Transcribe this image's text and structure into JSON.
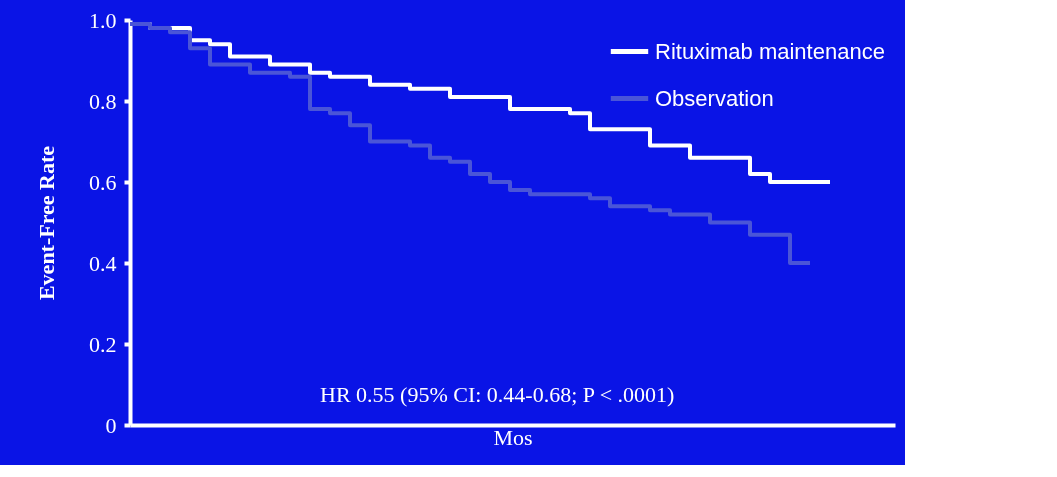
{
  "chart_data": {
    "type": "step",
    "xlabel": "Mos",
    "ylabel": "Event-Free Rate",
    "categories": [
      null,
      null,
      null,
      null,
      null,
      null,
      null,
      null,
      null,
      null,
      null,
      null,
      null,
      null,
      null,
      null,
      null,
      null,
      null,
      null,
      null,
      null,
      null,
      null,
      null,
      null,
      null,
      null,
      null,
      null,
      null,
      null,
      null,
      null,
      null,
      null
    ],
    "series": [
      {
        "name": "Rituximab maintenance",
        "color": "#ffffff",
        "values": [
          0.99,
          0.98,
          0.98,
          0.95,
          0.94,
          0.91,
          0.91,
          0.89,
          0.89,
          0.87,
          0.86,
          0.86,
          0.84,
          0.84,
          0.83,
          0.83,
          0.81,
          0.81,
          0.81,
          0.78,
          0.78,
          0.78,
          0.77,
          0.73,
          0.73,
          0.73,
          0.69,
          0.69,
          0.66,
          0.66,
          0.66,
          0.62,
          0.6,
          0.6,
          0.6,
          0.6
        ]
      },
      {
        "name": "Observation",
        "color": "#4a55d8",
        "values": [
          0.99,
          0.98,
          0.97,
          0.93,
          0.89,
          0.89,
          0.87,
          0.87,
          0.86,
          0.78,
          0.77,
          0.74,
          0.7,
          0.7,
          0.69,
          0.66,
          0.65,
          0.62,
          0.6,
          0.58,
          0.57,
          0.57,
          0.57,
          0.56,
          0.54,
          0.54,
          0.53,
          0.52,
          0.52,
          0.5,
          0.5,
          0.47,
          0.47,
          0.4,
          0.4,
          null
        ]
      }
    ],
    "ylim": [
      0,
      1
    ],
    "yticks": [
      0,
      {
        "value": 0.2,
        "label": "0.2"
      },
      {
        "value": 0.4,
        "label": "0.4"
      },
      {
        "value": 0.6,
        "label": "0.6"
      },
      {
        "value": 0.8,
        "label": "0.8"
      },
      {
        "value": 1,
        "label": "1.0"
      }
    ],
    "annotations": [
      "HR 0.55 (95% CI: 0.44-0.68; P < .0001)"
    ],
    "legend": "top right",
    "grid": false,
    "tick_labels": "y",
    "line_style": "solid",
    "marker": "none"
  }
}
